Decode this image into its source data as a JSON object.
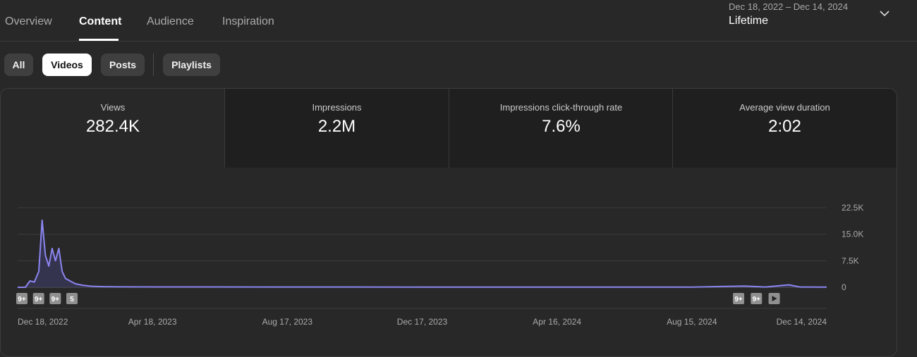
{
  "tabs": [
    {
      "label": "Overview",
      "active": false
    },
    {
      "label": "Content",
      "active": true
    },
    {
      "label": "Audience",
      "active": false
    },
    {
      "label": "Inspiration",
      "active": false
    }
  ],
  "date_range": {
    "sub": "Dec 18, 2022 – Dec 14, 2024",
    "main": "Lifetime"
  },
  "chips": [
    {
      "label": "All",
      "active": false
    },
    {
      "label": "Videos",
      "active": true
    },
    {
      "label": "Posts",
      "active": false
    },
    {
      "label": "Playlists",
      "active": false
    }
  ],
  "metrics": [
    {
      "label": "Views",
      "value": "282.4K",
      "selected": true
    },
    {
      "label": "Impressions",
      "value": "2.2M",
      "selected": false
    },
    {
      "label": "Impressions click-through rate",
      "value": "7.6%",
      "selected": false
    },
    {
      "label": "Average view duration",
      "value": "2:02",
      "selected": false
    }
  ],
  "colors": {
    "line": "#8b85f0",
    "area": "#3b3960",
    "badge": "#909090",
    "background": "#282828"
  },
  "chart_data": {
    "type": "area",
    "series": [
      {
        "x": [
          "2022-12-18",
          "2022-12-25",
          "2022-12-29",
          "2023-01-02",
          "2023-01-06",
          "2023-01-09",
          "2023-01-12",
          "2023-01-15",
          "2023-01-18",
          "2023-01-21",
          "2023-01-24",
          "2023-01-27",
          "2023-01-30",
          "2023-02-03",
          "2023-02-08",
          "2023-02-14",
          "2023-02-22",
          "2023-03-05",
          "2023-03-20",
          "2023-04-18",
          "2023-06-01",
          "2023-08-17",
          "2023-10-01",
          "2023-12-17",
          "2024-04-16",
          "2024-08-15",
          "2024-10-01",
          "2024-10-20",
          "2024-11-10",
          "2024-11-20",
          "2024-12-14"
        ],
        "y": [
          0,
          0,
          1800,
          1500,
          4500,
          19000,
          9000,
          6000,
          11000,
          7500,
          11000,
          4500,
          2500,
          1800,
          1000,
          600,
          300,
          180,
          120,
          100,
          90,
          80,
          70,
          60,
          50,
          50,
          350,
          80,
          700,
          80,
          60
        ]
      }
    ],
    "x_ticks": [
      "Dec 18, 2022",
      "Apr 18, 2023",
      "Aug 17, 2023",
      "Dec 17, 2023",
      "Apr 16, 2024",
      "Aug 15, 2024",
      "Dec 14, 2024"
    ],
    "y_ticks": [
      "0",
      "7.5K",
      "15.0K",
      "22.5K"
    ],
    "ylim": [
      0,
      22500
    ],
    "xlim": [
      "2022-12-18",
      "2024-12-14"
    ],
    "grid": true,
    "markers": [
      {
        "label": "9+",
        "date": "2022-12-18"
      },
      {
        "label": "9+",
        "date": "2023-01-02"
      },
      {
        "label": "9+",
        "date": "2023-01-17"
      },
      {
        "label": "5",
        "date": "2023-02-01"
      },
      {
        "label": "9+",
        "date": "2024-09-22"
      },
      {
        "label": "9+",
        "date": "2024-10-08"
      },
      {
        "label": "play",
        "date": "2024-10-24"
      }
    ]
  }
}
